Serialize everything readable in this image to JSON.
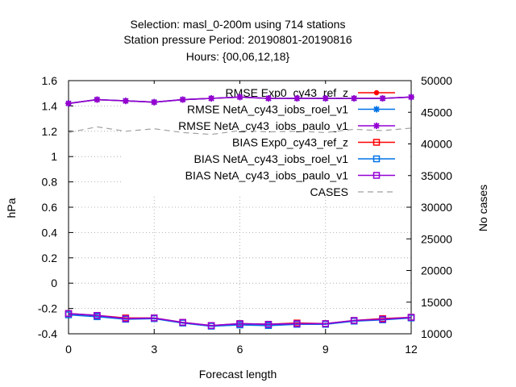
{
  "chart_data": {
    "type": "line",
    "title_lines": [
      "Selection: masl_0-200m using   714 stations",
      "Station pressure   Period: 20190801-20190816",
      "Hours: {00,06,12,18}"
    ],
    "xlabel": "Forecast length",
    "ylabel": "hPa",
    "y2label": "No cases",
    "xlim": [
      0,
      12
    ],
    "ylim": [
      -0.4,
      1.6
    ],
    "y2lim": [
      10000,
      50000
    ],
    "x_ticks": [
      "0",
      "3",
      "6",
      "9",
      "12"
    ],
    "y_ticks": [
      "-0.4",
      "-0.2",
      "0",
      "0.2",
      "0.4",
      "0.6",
      "0.8",
      "1",
      "1.2",
      "1.4",
      "1.6"
    ],
    "y2_ticks": [
      "10000",
      "15000",
      "20000",
      "25000",
      "30000",
      "35000",
      "40000",
      "45000",
      "50000"
    ],
    "grid": true,
    "legend_position": "top-right",
    "x": [
      0,
      1,
      2,
      3,
      4,
      5,
      6,
      7,
      8,
      9,
      10,
      11,
      12
    ],
    "series": [
      {
        "name": "RMSE Exp0_cy43_ref_z",
        "axis": "y",
        "color": "#ff0000",
        "marker": "filled-circle",
        "values": [
          1.42,
          1.45,
          1.44,
          1.43,
          1.45,
          1.46,
          1.47,
          1.46,
          1.46,
          1.46,
          1.46,
          1.46,
          1.47
        ]
      },
      {
        "name": "RMSE NetA_cy43_iobs_roel_v1",
        "axis": "y",
        "color": "#0072e6",
        "marker": "star",
        "values": [
          1.42,
          1.45,
          1.44,
          1.43,
          1.45,
          1.46,
          1.47,
          1.46,
          1.46,
          1.46,
          1.46,
          1.46,
          1.47
        ]
      },
      {
        "name": "RMSE NetA_cy43_iobs_paulo_v1",
        "axis": "y",
        "color": "#9400d3",
        "marker": "star",
        "values": [
          1.42,
          1.45,
          1.44,
          1.43,
          1.45,
          1.46,
          1.47,
          1.46,
          1.46,
          1.46,
          1.46,
          1.46,
          1.47
        ]
      },
      {
        "name": "BIAS Exp0_cy43_ref_z",
        "axis": "y",
        "color": "#ff0000",
        "marker": "square",
        "values": [
          -0.24,
          -0.255,
          -0.275,
          -0.275,
          -0.31,
          -0.335,
          -0.32,
          -0.325,
          -0.315,
          -0.32,
          -0.295,
          -0.28,
          -0.27
        ]
      },
      {
        "name": "BIAS NetA_cy43_iobs_roel_v1",
        "axis": "y",
        "color": "#0072e6",
        "marker": "square",
        "values": [
          -0.25,
          -0.265,
          -0.285,
          -0.28,
          -0.315,
          -0.34,
          -0.33,
          -0.335,
          -0.325,
          -0.325,
          -0.3,
          -0.29,
          -0.275
        ]
      },
      {
        "name": "BIAS NetA_cy43_iobs_paulo_v1",
        "axis": "y",
        "color": "#9400d3",
        "marker": "square",
        "values": [
          -0.24,
          -0.255,
          -0.28,
          -0.275,
          -0.31,
          -0.335,
          -0.32,
          -0.325,
          -0.32,
          -0.32,
          -0.295,
          -0.285,
          -0.27
        ]
      },
      {
        "name": "CASES",
        "axis": "y2",
        "color": "#a0a0a0",
        "marker": "none",
        "dashed": true,
        "values": [
          41800,
          42700,
          42000,
          42400,
          41800,
          41500,
          42100,
          41900,
          42000,
          41800,
          42300,
          42100,
          42500
        ]
      }
    ]
  }
}
